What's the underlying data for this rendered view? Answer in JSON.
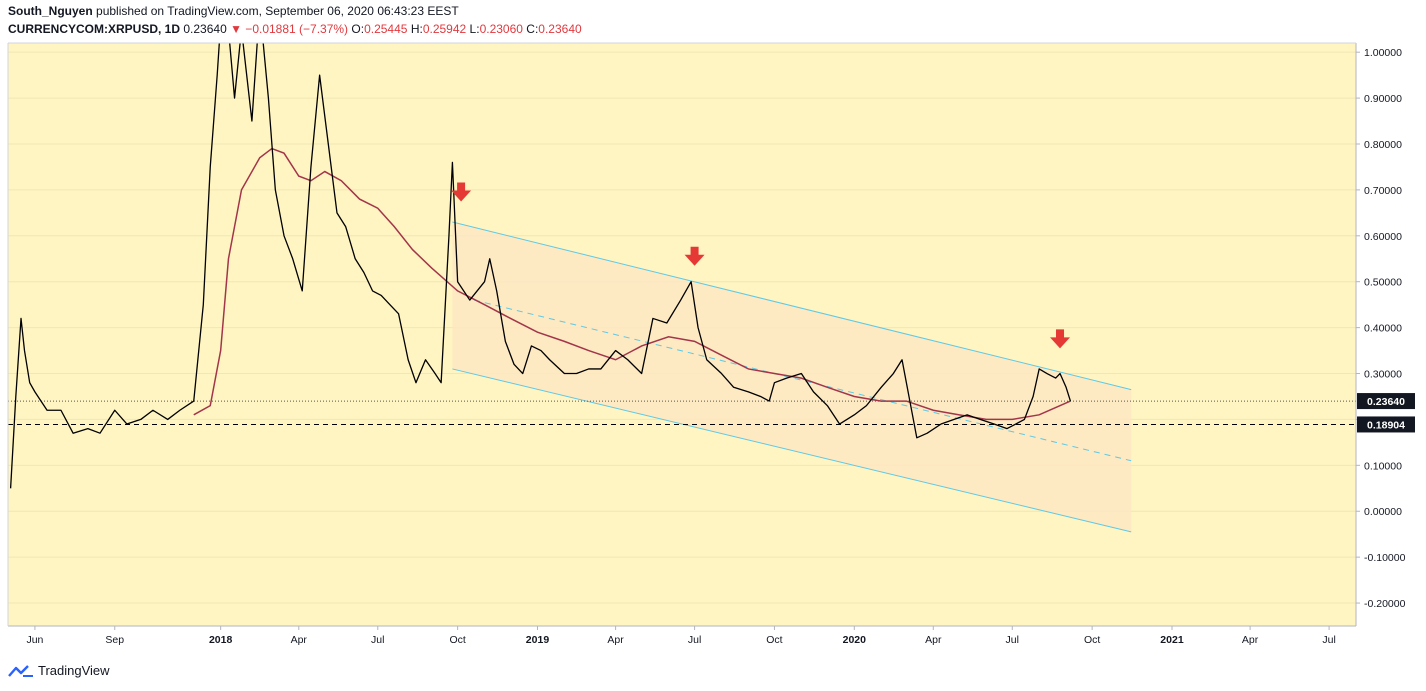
{
  "header": {
    "author": "South_Nguyen",
    "published_text": "published on TradingView.com, September 06, 2020 06:43:23 EEST",
    "symbol": "CURRENCYCOM:XRPUSD, 1D",
    "last": "0.23640",
    "change": "▼ −0.01881 (−7.37%)",
    "o_label": "O:",
    "o_value": "0.25445",
    "h_label": "H:",
    "h_value": "0.25942",
    "l_label": "L:",
    "l_value": "0.23060",
    "c_label": "C:",
    "c_value": "0.23640"
  },
  "footer": {
    "brand": "TradingView"
  },
  "colors": {
    "plot_bg": "#fff5c2",
    "channel_fill": "#fde6c2",
    "channel_line": "#5ec9e6",
    "ma_line": "#a3354a",
    "price_line": "#000000",
    "arrow": "#e53935"
  },
  "chart_data": {
    "type": "line",
    "title": "",
    "xlabel": "",
    "ylabel": "",
    "ylim": [
      -0.25,
      1.02
    ],
    "y_ticks": [
      "1.00000",
      "0.90000",
      "0.80000",
      "0.70000",
      "0.60000",
      "0.50000",
      "0.40000",
      "0.30000",
      "0.20000",
      "0.10000",
      "0.00000",
      "-0.10000",
      "-0.20000"
    ],
    "x_ticks": [
      {
        "label": "Jun",
        "date": "2017-06-01"
      },
      {
        "label": "Sep",
        "date": "2017-09-01"
      },
      {
        "label": "2018",
        "date": "2018-01-01",
        "bold": true
      },
      {
        "label": "Apr",
        "date": "2018-04-01"
      },
      {
        "label": "Jul",
        "date": "2018-07-01"
      },
      {
        "label": "Oct",
        "date": "2018-10-01"
      },
      {
        "label": "2019",
        "date": "2019-01-01",
        "bold": true
      },
      {
        "label": "Apr",
        "date": "2019-04-01"
      },
      {
        "label": "Jul",
        "date": "2019-07-01"
      },
      {
        "label": "Oct",
        "date": "2019-10-01"
      },
      {
        "label": "2020",
        "date": "2020-01-01",
        "bold": true
      },
      {
        "label": "Apr",
        "date": "2020-04-01"
      },
      {
        "label": "Jul",
        "date": "2020-07-01"
      },
      {
        "label": "Oct",
        "date": "2020-10-01"
      },
      {
        "label": "2021",
        "date": "2021-01-01",
        "bold": true
      },
      {
        "label": "Apr",
        "date": "2021-04-01"
      },
      {
        "label": "Jul",
        "date": "2021-07-01"
      }
    ],
    "series": [
      {
        "x": [
          "2017-05-04",
          "2017-05-10",
          "2017-05-16",
          "2017-05-20",
          "2017-05-26",
          "2017-06-01",
          "2017-06-15",
          "2017-07-01",
          "2017-07-15",
          "2017-08-01",
          "2017-08-15",
          "2017-09-01",
          "2017-09-15",
          "2017-10-01",
          "2017-10-15",
          "2017-11-01",
          "2017-11-15",
          "2017-12-01",
          "2017-12-12",
          "2017-12-20",
          "2017-12-28",
          "2018-01-04",
          "2018-01-10",
          "2018-01-17",
          "2018-01-25",
          "2018-02-06",
          "2018-02-15",
          "2018-02-25",
          "2018-03-05",
          "2018-03-15",
          "2018-03-25",
          "2018-04-05",
          "2018-04-15",
          "2018-04-25",
          "2018-05-05",
          "2018-05-15",
          "2018-05-25",
          "2018-06-05",
          "2018-06-15",
          "2018-06-25",
          "2018-07-05",
          "2018-07-15",
          "2018-07-25",
          "2018-08-05",
          "2018-08-14",
          "2018-08-25",
          "2018-09-05",
          "2018-09-12",
          "2018-09-21",
          "2018-09-25",
          "2018-10-01",
          "2018-10-15",
          "2018-11-01",
          "2018-11-07",
          "2018-11-15",
          "2018-11-25",
          "2018-12-05",
          "2018-12-15",
          "2018-12-25",
          "2019-01-05",
          "2019-01-15",
          "2019-02-01",
          "2019-02-15",
          "2019-03-01",
          "2019-03-15",
          "2019-04-01",
          "2019-04-15",
          "2019-05-01",
          "2019-05-14",
          "2019-05-30",
          "2019-06-15",
          "2019-06-27",
          "2019-07-05",
          "2019-07-15",
          "2019-08-01",
          "2019-08-15",
          "2019-09-01",
          "2019-09-15",
          "2019-09-25",
          "2019-10-01",
          "2019-10-15",
          "2019-11-01",
          "2019-11-15",
          "2019-12-01",
          "2019-12-15",
          "2020-01-01",
          "2020-01-15",
          "2020-02-01",
          "2020-02-15",
          "2020-02-25",
          "2020-03-05",
          "2020-03-13",
          "2020-03-25",
          "2020-04-10",
          "2020-04-25",
          "2020-05-10",
          "2020-05-25",
          "2020-06-10",
          "2020-06-25",
          "2020-07-05",
          "2020-07-15",
          "2020-07-25",
          "2020-08-01",
          "2020-08-10",
          "2020-08-20",
          "2020-08-25",
          "2020-09-01",
          "2020-09-06"
        ],
        "values": [
          0.05,
          0.25,
          0.42,
          0.35,
          0.28,
          0.26,
          0.22,
          0.22,
          0.17,
          0.18,
          0.17,
          0.22,
          0.19,
          0.2,
          0.22,
          0.2,
          0.22,
          0.24,
          0.45,
          0.75,
          0.95,
          1.15,
          1.05,
          0.9,
          1.05,
          0.85,
          1.1,
          0.9,
          0.7,
          0.6,
          0.55,
          0.48,
          0.75,
          0.95,
          0.8,
          0.65,
          0.62,
          0.55,
          0.52,
          0.48,
          0.47,
          0.45,
          0.43,
          0.33,
          0.28,
          0.33,
          0.3,
          0.28,
          0.6,
          0.76,
          0.5,
          0.46,
          0.5,
          0.55,
          0.48,
          0.37,
          0.32,
          0.3,
          0.36,
          0.35,
          0.33,
          0.3,
          0.3,
          0.31,
          0.31,
          0.35,
          0.33,
          0.3,
          0.42,
          0.41,
          0.46,
          0.5,
          0.4,
          0.33,
          0.3,
          0.27,
          0.26,
          0.25,
          0.24,
          0.28,
          0.29,
          0.3,
          0.26,
          0.23,
          0.19,
          0.21,
          0.23,
          0.27,
          0.3,
          0.33,
          0.24,
          0.16,
          0.17,
          0.19,
          0.2,
          0.21,
          0.2,
          0.19,
          0.18,
          0.19,
          0.2,
          0.25,
          0.31,
          0.3,
          0.29,
          0.3,
          0.27,
          0.24
        ]
      },
      {
        "x": [
          "2017-12-01",
          "2017-12-20",
          "2018-01-01",
          "2018-01-10",
          "2018-01-25",
          "2018-02-15",
          "2018-03-01",
          "2018-03-15",
          "2018-04-01",
          "2018-04-15",
          "2018-05-01",
          "2018-05-20",
          "2018-06-10",
          "2018-07-01",
          "2018-07-20",
          "2018-08-10",
          "2018-09-01",
          "2018-10-01",
          "2018-11-01",
          "2018-12-01",
          "2019-01-01",
          "2019-02-01",
          "2019-03-01",
          "2019-04-01",
          "2019-05-01",
          "2019-06-01",
          "2019-07-01",
          "2019-08-01",
          "2019-09-01",
          "2019-10-01",
          "2019-11-01",
          "2019-12-01",
          "2020-01-01",
          "2020-02-01",
          "2020-03-01",
          "2020-04-01",
          "2020-05-01",
          "2020-06-01",
          "2020-07-01",
          "2020-08-01",
          "2020-09-06"
        ],
        "values": [
          0.21,
          0.23,
          0.35,
          0.55,
          0.7,
          0.77,
          0.79,
          0.78,
          0.73,
          0.72,
          0.74,
          0.72,
          0.68,
          0.66,
          0.62,
          0.57,
          0.53,
          0.48,
          0.45,
          0.42,
          0.39,
          0.37,
          0.35,
          0.33,
          0.36,
          0.38,
          0.37,
          0.34,
          0.31,
          0.3,
          0.29,
          0.27,
          0.25,
          0.24,
          0.24,
          0.22,
          0.21,
          0.2,
          0.2,
          0.21,
          0.24
        ]
      }
    ],
    "current_price_label": "0.23640",
    "support_label": "0.18904",
    "support_level": 0.18904
  }
}
